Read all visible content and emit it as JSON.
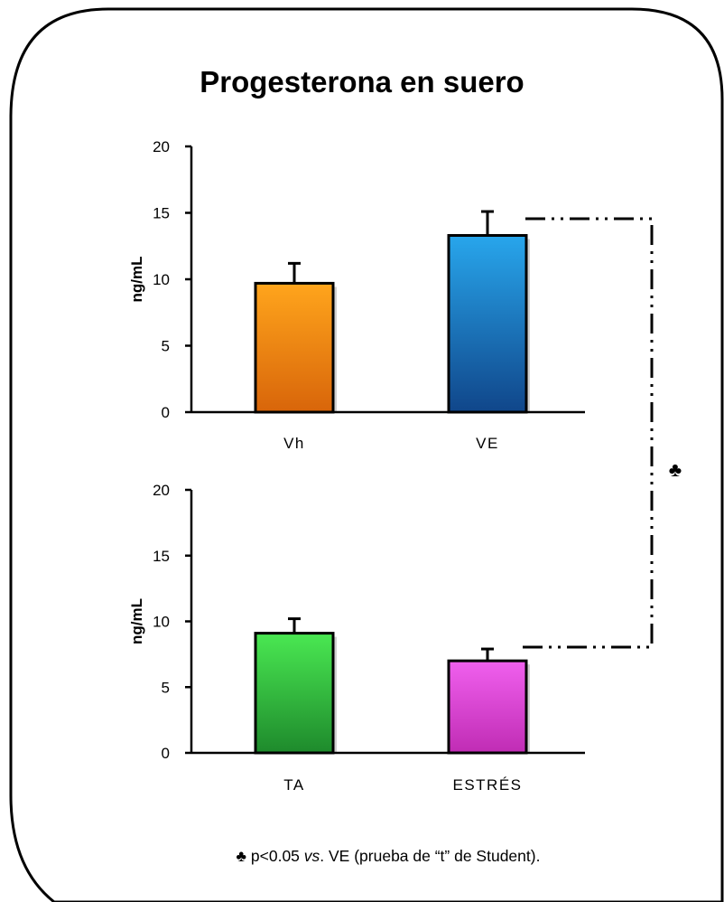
{
  "title": "Progesterona en suero",
  "footnote": {
    "symbol": "♣",
    "before": " p<0.05 ",
    "italic": "vs",
    "after": ". VE (prueba de “t” de Student)."
  },
  "significance_symbol": "♣",
  "chart_data": [
    {
      "type": "bar",
      "title": "",
      "xlabel": "",
      "ylabel": "ng/mL",
      "ylim": [
        0,
        20
      ],
      "yticks": [
        "0",
        "5",
        "10",
        "15",
        "20"
      ],
      "categories": [
        "Vh",
        "VE"
      ],
      "values": [
        9.7,
        13.3
      ],
      "errors": [
        1.5,
        1.8
      ],
      "colors": [
        "#f08a14",
        "#1a86d0"
      ]
    },
    {
      "type": "bar",
      "title": "",
      "xlabel": "",
      "ylabel": "ng/mL",
      "ylim": [
        0,
        20
      ],
      "yticks": [
        "0",
        "5",
        "10",
        "15",
        "20"
      ],
      "categories": [
        "TA",
        "ESTRÉS"
      ],
      "values": [
        9.1,
        7.0
      ],
      "errors": [
        1.1,
        0.9
      ],
      "colors": [
        "#2ecc3a",
        "#dd4ad6"
      ]
    }
  ]
}
